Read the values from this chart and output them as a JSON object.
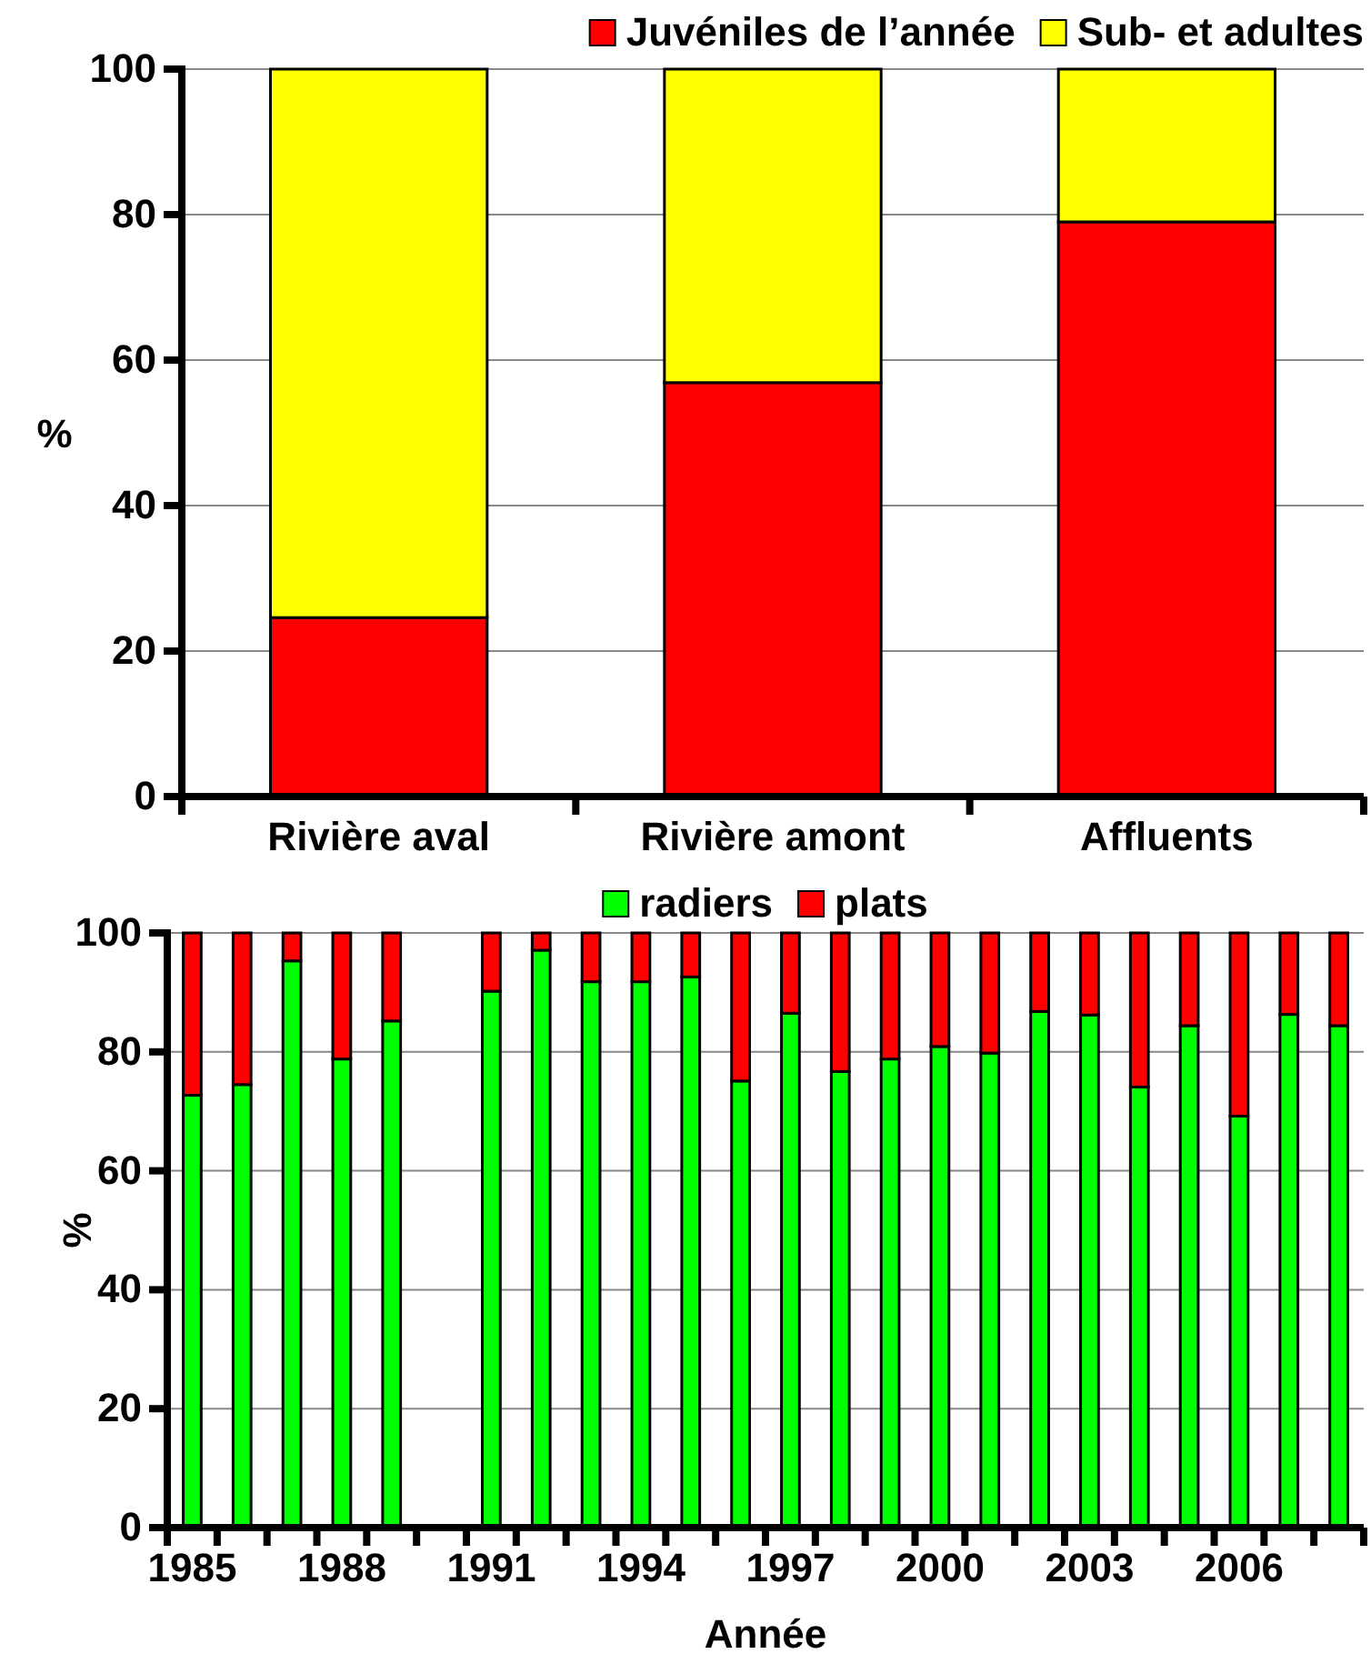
{
  "chart_data": [
    {
      "type": "bar",
      "stacked": true,
      "ylabel": "%",
      "categories": [
        "Rivière aval",
        "Rivière amont",
        "Affluents"
      ],
      "series": [
        {
          "name": "Juvéniles de l’année",
          "color": "#ff0000",
          "values": [
            24.6,
            56.9,
            79.0
          ]
        },
        {
          "name": "Sub- et adultes",
          "color": "#ffff00",
          "values": [
            75.4,
            43.1,
            21.0
          ]
        }
      ],
      "ylim": [
        0,
        100
      ],
      "yticks": [
        0,
        20,
        40,
        60,
        80,
        100
      ],
      "grid": "y",
      "legend": "top right"
    },
    {
      "type": "bar",
      "stacked": true,
      "ylabel": "%",
      "xlabel": "Année",
      "categories": [
        "1985",
        null,
        null,
        "1988",
        null,
        null,
        "1991",
        null,
        null,
        "1994",
        null,
        null,
        "1997",
        null,
        null,
        "2000",
        null,
        null,
        "2003",
        null,
        null,
        "2006",
        null,
        null
      ],
      "series": [
        {
          "name": "radiers",
          "color": "#00ff00",
          "values": [
            72.7,
            74.5,
            95.3,
            78.8,
            85.2,
            null,
            90.2,
            97.1,
            91.8,
            91.8,
            92.6,
            75.1,
            86.5,
            76.7,
            78.8,
            80.9,
            79.8,
            86.8,
            86.2,
            74.1,
            84.4,
            69.2,
            86.3,
            84.4
          ]
        },
        {
          "name": "plats",
          "color": "#ff0000",
          "values": [
            27.3,
            25.5,
            4.7,
            21.2,
            14.8,
            null,
            9.8,
            2.9,
            8.2,
            8.2,
            7.4,
            24.9,
            13.5,
            23.3,
            21.2,
            19.1,
            20.2,
            13.2,
            13.8,
            25.9,
            15.6,
            30.8,
            13.7,
            15.6
          ]
        }
      ],
      "ylim": [
        0,
        100
      ],
      "yticks": [
        0,
        20,
        40,
        60,
        80,
        100
      ],
      "grid": "y",
      "legend": "top"
    }
  ]
}
